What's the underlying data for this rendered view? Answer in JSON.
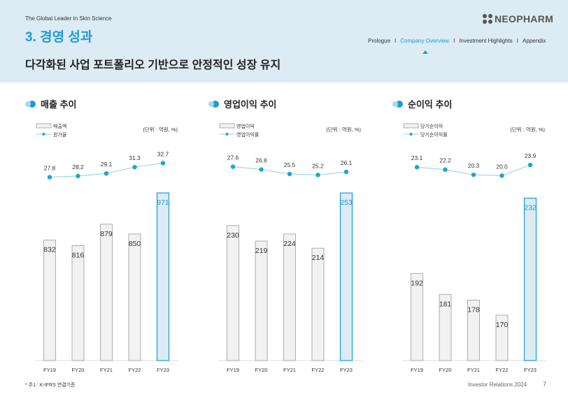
{
  "header": {
    "tagline": "The Global Leader In Skin Science",
    "section_title": "3. 경영 성과",
    "subtitle": "다각화된 사업 포트폴리오 기반으로 안정적인 성장 유지",
    "logo_text": "NEOPHARM",
    "nav": [
      "Prologue",
      "Company Overview",
      "Investment Highlights",
      "Appendix"
    ],
    "nav_separator": "I",
    "active_nav": "Company Overview"
  },
  "colors": {
    "accent": "#1f9bd6",
    "bar_fill": "#f2f2f2",
    "bar_stroke": "#9a9a9a",
    "highlight_fill": "#dcebf4",
    "line_color": "#8fcfe8",
    "marker_color": "#18a7d0"
  },
  "chart_data": [
    {
      "type": "bar",
      "title": "매출 추이",
      "unit_label": "(단위 : 억원, %)",
      "legend": [
        "매출액",
        "원가율"
      ],
      "categories": [
        "FY19",
        "FY20",
        "FY21",
        "FY22",
        "FY23"
      ],
      "series": [
        {
          "name": "매출액",
          "kind": "bar",
          "values": [
            832,
            816,
            879,
            850,
            971
          ]
        },
        {
          "name": "원가율",
          "kind": "line",
          "values": [
            27.8,
            28.2,
            29.1,
            31.3,
            32.7
          ]
        }
      ],
      "bar_range": [
        500,
        1000
      ],
      "line_range": [
        14.0,
        35.5
      ],
      "highlight_index": 4
    },
    {
      "type": "bar",
      "title": "영업이익 추이",
      "unit_label": "(단위 : 억원, %)",
      "legend": [
        "영업이익",
        "영업이익률"
      ],
      "categories": [
        "FY19",
        "FY20",
        "FY21",
        "FY22",
        "FY23"
      ],
      "series": [
        {
          "name": "영업이익",
          "kind": "bar",
          "values": [
            230,
            219,
            224,
            214,
            253
          ]
        },
        {
          "name": "영업이익률",
          "kind": "line",
          "values": [
            27.6,
            26.8,
            25.5,
            25.2,
            26.1
          ]
        }
      ],
      "bar_range": [
        140,
        260
      ],
      "line_range": [
        13.0,
        31.0
      ],
      "highlight_index": 4
    },
    {
      "type": "bar",
      "title": "순이익 추이",
      "unit_label": "(단위 : 억원, %)",
      "legend": [
        "당기순이익",
        "당기순이익률"
      ],
      "categories": [
        "FY19",
        "FY20",
        "FY21",
        "FY22",
        "FY23"
      ],
      "series": [
        {
          "name": "당기순이익",
          "kind": "bar",
          "values": [
            192,
            181,
            178,
            170,
            232
          ]
        },
        {
          "name": "당기순이익률",
          "kind": "line",
          "values": [
            23.1,
            22.2,
            20.3,
            20.0,
            23.9
          ]
        }
      ],
      "bar_range": [
        150,
        240
      ],
      "line_range": [
        5.0,
        27.5
      ],
      "highlight_index": 4
    }
  ],
  "footer": {
    "footnote": "* 주1 : K-IFRS 연결기준",
    "label": "Investor Relations 2024",
    "page_number": "7"
  }
}
